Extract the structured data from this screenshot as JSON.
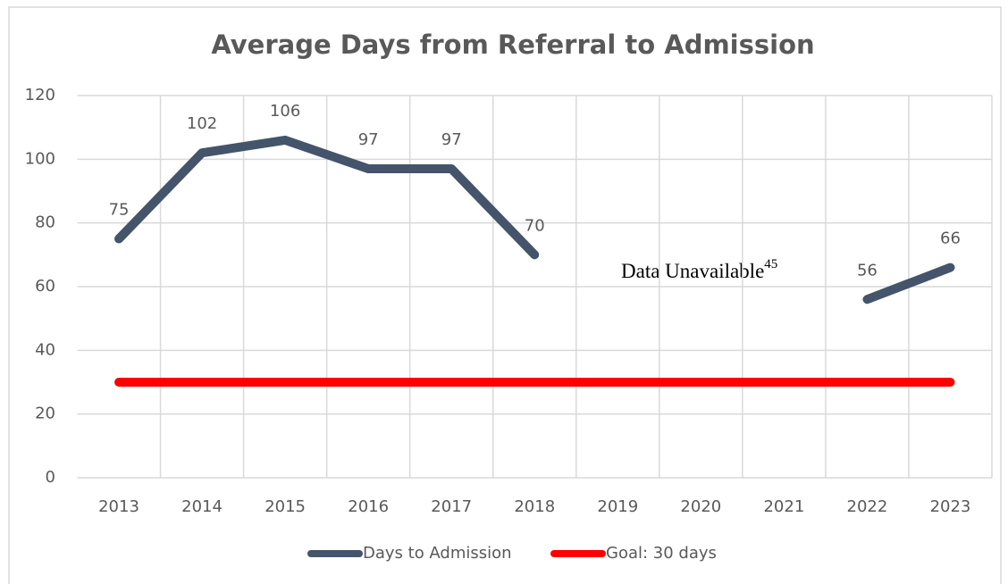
{
  "chart_data": {
    "type": "line",
    "title": "Average Days from Referral to Admission",
    "categories": [
      "2013",
      "2014",
      "2015",
      "2016",
      "2017",
      "2018",
      "2019",
      "2020",
      "2021",
      "2022",
      "2023"
    ],
    "series": [
      {
        "name": "Days to Admission",
        "color": "#44546a",
        "values": [
          75,
          102,
          106,
          97,
          97,
          70,
          null,
          null,
          null,
          56,
          66
        ],
        "data_labels": true
      },
      {
        "name": "Goal: 30 days",
        "color": "#ff0000",
        "values": [
          30,
          30,
          30,
          30,
          30,
          30,
          30,
          30,
          30,
          30,
          30
        ],
        "data_labels": false
      }
    ],
    "annotation": {
      "text": "Data Unavailable",
      "superscript": "45"
    },
    "ylim": [
      0,
      120
    ],
    "yticks": [
      0,
      20,
      40,
      60,
      80,
      100,
      120
    ],
    "grid": true,
    "legend": "bottom"
  }
}
